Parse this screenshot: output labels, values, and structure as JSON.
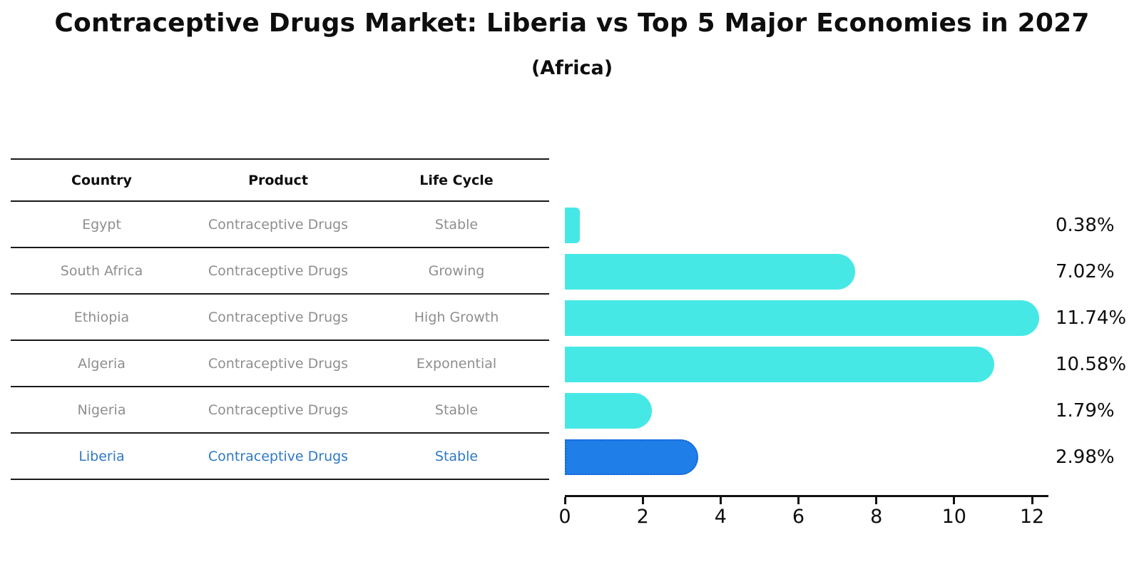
{
  "title": "Contraceptive Drugs Market: Liberia vs Top 5 Major Economies in 2027",
  "subtitle": "(Africa)",
  "table": {
    "headers": [
      "Country",
      "Product",
      "Life Cycle"
    ],
    "rows": [
      {
        "country": "Egypt",
        "product": "Contraceptive Drugs",
        "life_cycle": "Stable",
        "highlighted": false
      },
      {
        "country": "South Africa",
        "product": "Contraceptive Drugs",
        "life_cycle": "Growing",
        "highlighted": false
      },
      {
        "country": "Ethiopia",
        "product": "Contraceptive Drugs",
        "life_cycle": "High Growth",
        "highlighted": false
      },
      {
        "country": "Algeria",
        "product": "Contraceptive Drugs",
        "life_cycle": "Exponential",
        "highlighted": false
      },
      {
        "country": "Nigeria",
        "product": "Contraceptive Drugs",
        "life_cycle": "Stable",
        "highlighted": false
      },
      {
        "country": "Liberia",
        "product": "Contraceptive Drugs",
        "life_cycle": "Stable",
        "highlighted": true
      }
    ]
  },
  "chart_data": {
    "type": "bar",
    "orientation": "horizontal",
    "title": "Contraceptive Drugs Market: Liberia vs Top 5 Major Economies in 2027",
    "subtitle": "(Africa)",
    "categories": [
      "Egypt",
      "South Africa",
      "Ethiopia",
      "Algeria",
      "Nigeria",
      "Liberia"
    ],
    "values": [
      0.38,
      7.02,
      11.74,
      10.58,
      1.79,
      2.98
    ],
    "value_labels": [
      "0.38%",
      "7.02%",
      "11.74%",
      "10.58%",
      "1.79%",
      "2.98%"
    ],
    "highlight_index": 5,
    "xlabel": "",
    "ylabel": "",
    "xlim": [
      0,
      12
    ],
    "x_ticks": [
      0,
      2,
      4,
      6,
      8,
      10,
      12
    ],
    "grid": false,
    "legend": false
  },
  "colors": {
    "bar": "#46E8E6",
    "highlight_bar": "#1F7EE8",
    "highlight_border": "#1461D6",
    "highlight_text": "#2E79C2",
    "row_text": "#8E8E8E",
    "line": "#1A1A1A",
    "axis": "#111111",
    "text": "#0E0E0E"
  }
}
